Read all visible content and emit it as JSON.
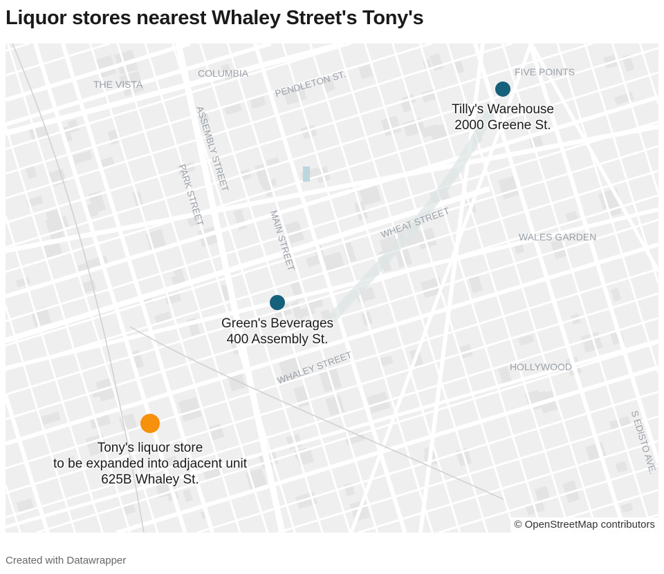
{
  "title": "Liquor stores nearest Whaley Street's Tony's",
  "map": {
    "neighborhoods": [
      "COLUMBIA",
      "THE VISTA",
      "FIVE POINTS",
      "WALES GARDEN",
      "HOLLYWOOD"
    ],
    "streets": [
      "PENDLETON ST.",
      "ASSEMBLY STREET",
      "PARK STREET",
      "MAIN STREET",
      "WHEAT STREET",
      "WHALEY STREET",
      "S EDISTO AVE."
    ],
    "markers": [
      {
        "lines": [
          "Tilly's Warehouse",
          "2000 Greene St."
        ],
        "color": "#15607a"
      },
      {
        "lines": [
          "Green's Beverages",
          "400 Assembly St."
        ],
        "color": "#15607a"
      },
      {
        "lines": [
          "Tony's liquor store",
          "to be expanded into adjacent unit",
          "625B Whaley St."
        ],
        "color": "#f7900a"
      }
    ],
    "attribution": "© OpenStreetMap contributors"
  },
  "footer": "Created with Datawrapper"
}
